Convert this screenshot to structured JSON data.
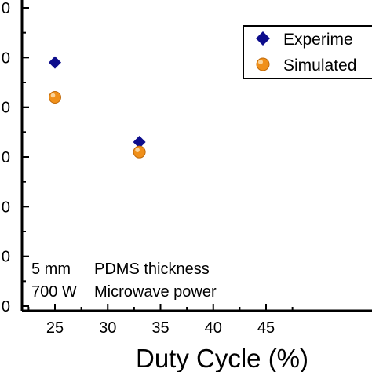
{
  "chart_data": {
    "type": "scatter",
    "title": "",
    "xlabel": "Duty Cycle (%)",
    "ylabel": "",
    "x_ticks": [
      "25",
      "30",
      "35",
      "40",
      "45"
    ],
    "xlim": [
      22.5,
      47.5
    ],
    "ylim": [
      0,
      6
    ],
    "y_tick_labels": [
      "0",
      "0",
      "0",
      "0",
      "0",
      "0",
      "0"
    ],
    "grid": false,
    "legend_position": "top-right",
    "series": [
      {
        "name": "Experime",
        "marker": "diamond",
        "color": "#0d0d8c",
        "points": [
          {
            "x": 25,
            "y": 4.9
          },
          {
            "x": 33,
            "y": 3.3
          }
        ]
      },
      {
        "name": "Simulated",
        "marker": "circle",
        "color": "#f0901a",
        "points": [
          {
            "x": 25,
            "y": 4.2
          },
          {
            "x": 33,
            "y": 3.1
          }
        ]
      }
    ],
    "annotations": [
      {
        "value": "5 mm",
        "label": "PDMS thickness"
      },
      {
        "value": "700 W",
        "label": "Microwave power"
      }
    ]
  }
}
